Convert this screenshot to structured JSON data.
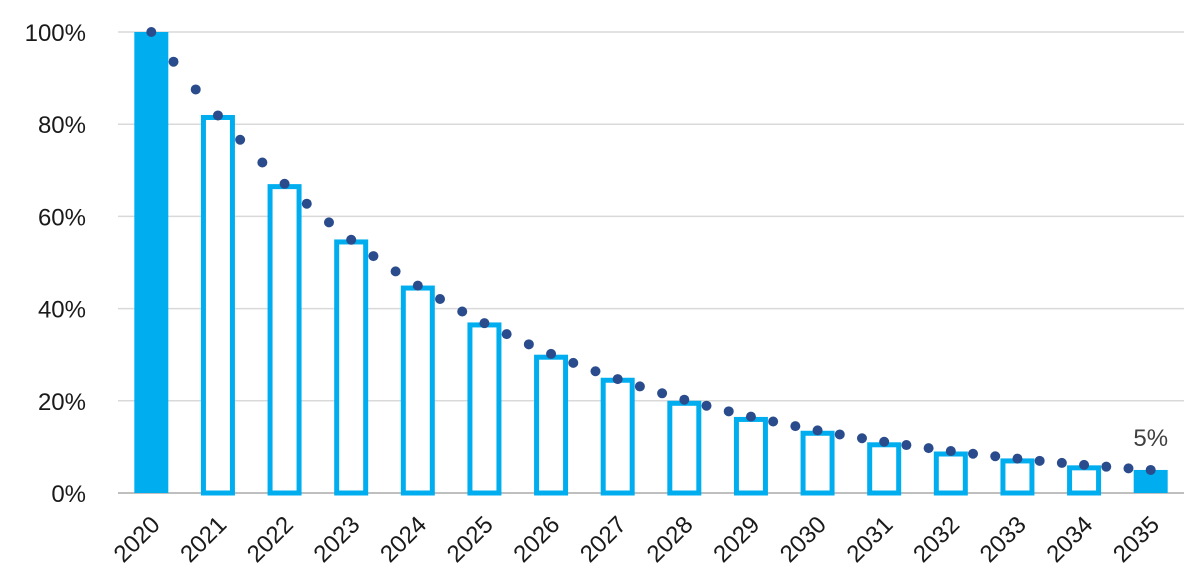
{
  "chart_data": {
    "type": "bar",
    "title": "",
    "xlabel": "",
    "ylabel": "",
    "categories": [
      "2020",
      "2021",
      "2022",
      "2023",
      "2024",
      "2025",
      "2026",
      "2027",
      "2028",
      "2029",
      "2030",
      "2031",
      "2032",
      "2033",
      "2034",
      "2035"
    ],
    "values": [
      100,
      82,
      67,
      55,
      45,
      37,
      30,
      25,
      20,
      16.5,
      13.5,
      11,
      9,
      7.5,
      6,
      5
    ],
    "filled_categories": [
      "2020",
      "2035"
    ],
    "trend_line": {
      "style": "dotted",
      "description": "exponential decay from 100% (2020) to 5% (2035)",
      "start_value": 100,
      "end_value": 5
    },
    "ylim": [
      0,
      100
    ],
    "yticks": [
      "0%",
      "20%",
      "40%",
      "60%",
      "80%",
      "100%"
    ],
    "ytick_values": [
      0,
      20,
      40,
      60,
      80,
      100
    ],
    "data_labels": [
      {
        "category": "2035",
        "text": "5%"
      }
    ],
    "grid": true,
    "legend": "none",
    "colors": {
      "bar": "#00aeef",
      "trend": "#2b4c8c",
      "grid": "#d9d9d9",
      "axis": "#bfbfbf"
    }
  }
}
